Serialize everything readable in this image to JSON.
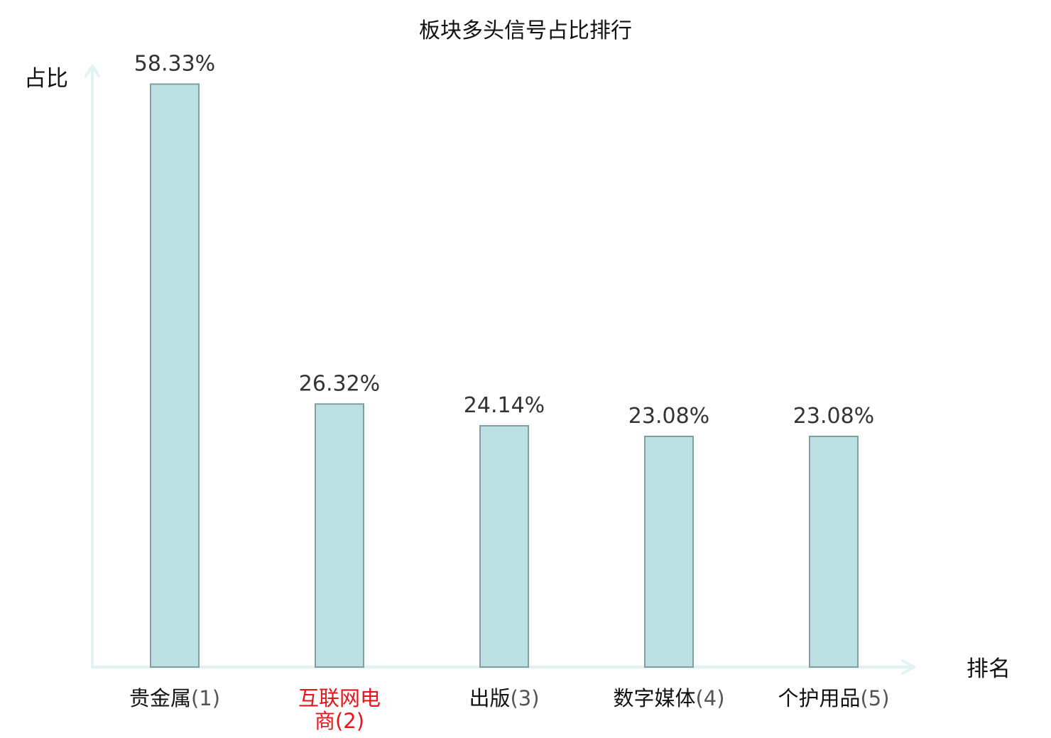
{
  "chart_data": {
    "type": "bar",
    "title": "板块多头信号占比排行",
    "ylabel": "占比",
    "xlabel": "排名",
    "ylim": [
      0,
      60
    ],
    "grid": false,
    "categories": [
      {
        "name": "贵金属",
        "rank": "(1)",
        "highlight": false
      },
      {
        "name": "互联网电商",
        "rank": "(2)",
        "highlight": true
      },
      {
        "name": "出版",
        "rank": "(3)",
        "highlight": false
      },
      {
        "name": "数字媒体",
        "rank": "(4)",
        "highlight": false
      },
      {
        "name": "个护用品",
        "rank": "(5)",
        "highlight": false
      }
    ],
    "values": [
      58.33,
      26.32,
      24.14,
      23.08,
      23.08
    ],
    "value_labels": [
      "58.33%",
      "26.32%",
      "24.14%",
      "23.08%",
      "23.08%"
    ],
    "colors": {
      "bar_fill": "#bde0e2",
      "bar_stroke": "#7f9f9f",
      "axis": "#e0f3f0",
      "highlight_text": "#e8141b"
    }
  }
}
